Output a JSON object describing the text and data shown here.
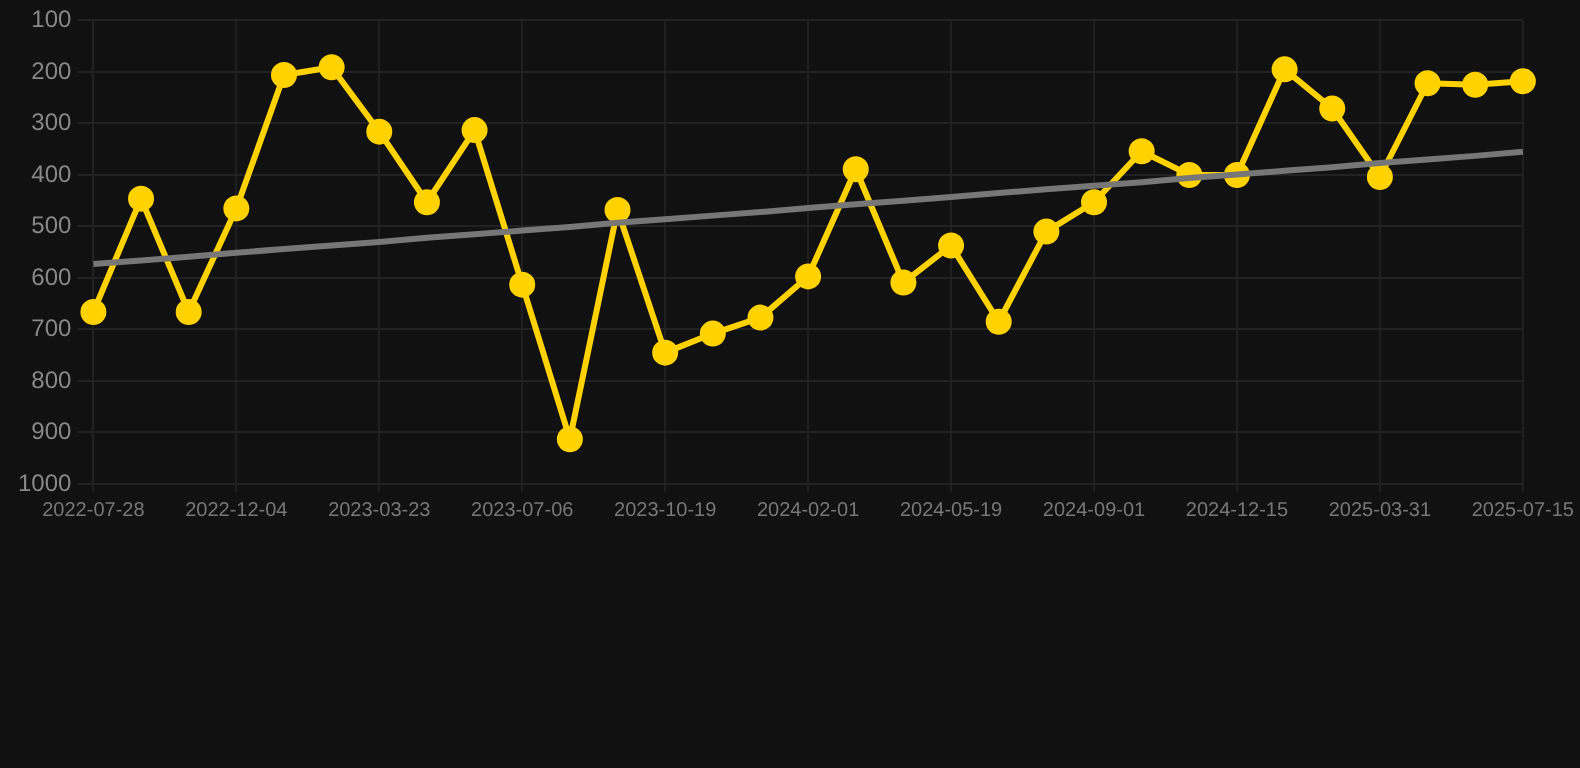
{
  "chart_data": {
    "type": "line",
    "categories": [
      "2022-07-28",
      null,
      null,
      "2022-12-04",
      null,
      null,
      "2023-03-23",
      null,
      null,
      "2023-07-06",
      null,
      null,
      "2023-10-19",
      null,
      null,
      "2024-02-01",
      null,
      null,
      "2024-05-19",
      null,
      null,
      "2024-09-01",
      null,
      null,
      "2024-12-15",
      null,
      null,
      "2025-03-31",
      null,
      null,
      "2025-07-15"
    ],
    "series": [
      {
        "color": "#ffd200",
        "values": [
          666,
          446,
          666,
          465,
          206,
          191,
          316,
          453,
          313,
          613,
          913,
          468,
          745,
          708,
          677,
          597,
          389,
          609,
          537,
          685,
          510,
          453,
          354,
          400,
          400,
          195,
          271,
          404,
          222,
          225,
          218
        ]
      },
      {
        "type": "line",
        "color": "#777777",
        "marker": "none",
        "values": [
          573,
          566,
          559,
          551,
          544,
          537,
          530,
          522,
          515,
          508,
          501,
          493,
          486,
          479,
          472,
          464,
          457,
          450,
          443,
          435,
          428,
          421,
          414,
          406,
          399,
          392,
          385,
          377,
          370,
          363,
          355
        ]
      }
    ],
    "ylim": [
      1000,
      100
    ],
    "yticks": [
      100,
      200,
      300,
      400,
      500,
      600,
      700,
      800,
      900,
      1000
    ],
    "grid": true,
    "legend": false,
    "marker": "circle",
    "line_style": "solid"
  }
}
